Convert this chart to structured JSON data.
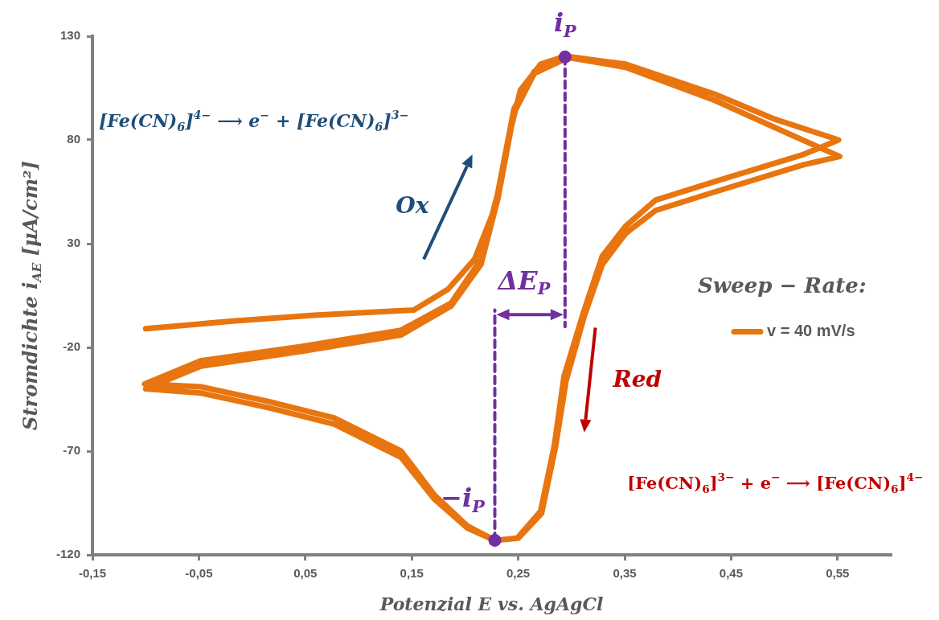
{
  "chart_data": {
    "type": "line",
    "xlabel": "Potenzial E vs. AgAgCl",
    "ylabel": "Stromdichte i$_{AE}$ [μA/cm²]",
    "legend_title": "Sweep − Rate:",
    "legend": "right",
    "grid": false,
    "xlim": [
      -0.15,
      0.6
    ],
    "xticks": [
      {
        "value": -0.15,
        "label": "-0,15"
      },
      {
        "value": -0.05,
        "label": "-0,05"
      },
      {
        "value": 0.05,
        "label": "0,05"
      },
      {
        "value": 0.15,
        "label": "0,15"
      },
      {
        "value": 0.25,
        "label": "0,25"
      },
      {
        "value": 0.35,
        "label": "0,35"
      },
      {
        "value": 0.45,
        "label": "0,45"
      },
      {
        "value": 0.55,
        "label": "0,55"
      }
    ],
    "ylim": [
      -120,
      130
    ],
    "yticks": [
      -120,
      -70,
      -20,
      30,
      80,
      130
    ],
    "series": [
      {
        "name": "v = 40 mV/s",
        "color": "#e8750f",
        "marker": "none",
        "line_style": "solid",
        "x": [
          -0.1,
          -0.018,
          0.058,
          0.152,
          0.184,
          0.209,
          0.228,
          0.24,
          0.252,
          0.271,
          0.294,
          0.351,
          0.435,
          0.491,
          0.551,
          0.518,
          0.435,
          0.379,
          0.351,
          0.329,
          0.312,
          0.293,
          0.284,
          0.271,
          0.249,
          0.228,
          0.202,
          0.171,
          0.14,
          0.077,
          0.015,
          -0.048,
          -0.101,
          -0.048,
          0.046,
          0.14,
          0.187,
          0.215,
          0.231,
          0.246,
          0.265,
          0.294,
          0.351,
          0.435,
          0.491,
          0.552,
          0.518,
          0.435,
          0.379,
          0.351,
          0.329,
          0.312,
          0.295,
          0.285,
          0.272,
          0.25,
          0.228,
          0.202,
          0.171,
          0.14,
          0.077,
          0.015,
          -0.048,
          -0.1,
          -0.048,
          0.046,
          0.14,
          0.187,
          0.215,
          0.231,
          0.246,
          0.265,
          0.294
        ],
        "values": [
          -11,
          -7.3,
          -4.5,
          -2,
          8,
          22.5,
          47,
          79,
          104,
          116.5,
          120.4,
          116.5,
          102,
          90,
          80,
          73,
          60,
          51,
          38.5,
          24,
          -2,
          -34,
          -67,
          -99,
          -112,
          -113,
          -106,
          -91,
          -70,
          -54,
          -46,
          -39,
          -37.6,
          -26.4,
          -19.6,
          -11.7,
          1.4,
          22.5,
          54.8,
          95,
          113,
          120,
          115,
          99,
          86,
          72,
          68,
          55,
          46,
          35,
          20,
          -5,
          -36,
          -68,
          -100,
          -112,
          -113,
          -107,
          -93,
          -73,
          -57,
          -49,
          -42,
          -40,
          -29,
          -22,
          -14,
          0,
          20,
          52,
          93,
          112,
          119
        ]
      },
      {
        "type": "line",
        "color": "#7030a0",
        "marker": "none",
        "line_style": "dashed",
        "x": [
          0.294,
          0.294
        ],
        "values": [
          120,
          -10
        ]
      },
      {
        "type": "line",
        "color": "#7030a0",
        "marker": "none",
        "line_style": "dashed",
        "x": [
          0.228,
          0.228
        ],
        "values": [
          -113,
          -2
        ]
      },
      {
        "type": "scatter",
        "color": "#7030a0",
        "marker": "circle",
        "x": [
          0.294,
          0.228
        ],
        "values": [
          120,
          -113
        ]
      }
    ],
    "annotations": [
      {
        "text": "i$_{P}$",
        "x": 0.294,
        "y": 120
      },
      {
        "text": "−i$_{P}$",
        "x": 0.228,
        "y": -113
      },
      "[Fe(CN)$_{6}$]$^{4−}$ ⟶ e$^{−}$ + [Fe(CN)$_{6}$]$^{3−}$",
      "Ox",
      "Red",
      "[Fe(CN)$_{6}$]$^{3−}$ + e$^{−}$ ⟶ [Fe(CN)$_{6}$]$^{4−}$",
      "ΔE$_{P}$"
    ]
  }
}
